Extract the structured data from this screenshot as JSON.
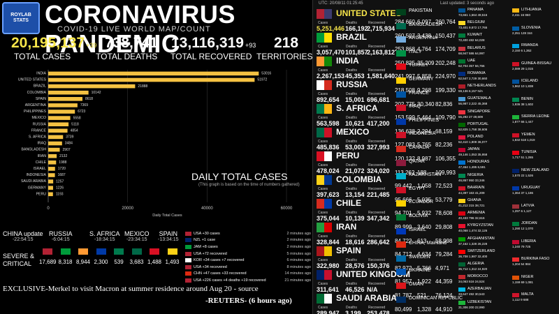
{
  "header": {
    "logo_line1": "ROYLAB",
    "logo_line2": "STATS",
    "title": "CORONAVIRUS PANDEMIC",
    "subtitle": "COVID-19 LIVE WORLD MAP/COUNT"
  },
  "totals": {
    "cases": "20,195,137",
    "cases_delta": "+39",
    "cases_label": "TOTAL CASES",
    "deaths": "738,741",
    "deaths_label": "TOTAL DEATHS",
    "recovered": "13,116,319",
    "recovered_delta": "+93",
    "recovered_label": "TOTAL RECOVERED",
    "territories": "218",
    "territories_label": "TERRITORIES"
  },
  "chart_title": "DAILY TOTAL CASES",
  "chart_note": "(This graph is based on the time of numbers gathered)",
  "chart_data": {
    "type": "bar",
    "orientation": "horizontal",
    "title": "DAILY TOTAL CASES",
    "xlabel": "Daily Total Cases",
    "ylabel": "",
    "xlim": [
      0,
      60000
    ],
    "xticks": [
      "0",
      "20000",
      "40000",
      "60000"
    ],
    "categories": [
      "INDIA",
      "UNITED STATES",
      "BRAZIL",
      "COLOMBIA",
      "SPAIN",
      "ARGENTINA",
      "PHILIPPINES",
      "MEXICO",
      "RUSSIA",
      "FRANCE",
      "S. AFRICA",
      "IRAQ",
      "BANGLADESH",
      "IRAN",
      "CHILE",
      "ISRAEL",
      "INDONESIA",
      "SAUDI ARABIA",
      "GERMANY",
      "PERU"
    ],
    "values": [
      53016,
      51972,
      21888,
      10142,
      8618,
      7369,
      6723,
      5558,
      5118,
      4854,
      3739,
      3484,
      2907,
      2132,
      1988,
      1720,
      1687,
      1257,
      1226,
      1193
    ],
    "grid": true
  },
  "china_bar": [
    {
      "name": "CHINA update",
      "time": "-22:54:15"
    },
    {
      "name": "RUSSIA",
      "time": "-6:04:15"
    },
    {
      "name": "S. AFRICA",
      "time": "-18:34:15"
    },
    {
      "name": "MEXICO",
      "time": "-23:34:15"
    },
    {
      "name": "SPAIN",
      "time": "-13:34:15"
    }
  ],
  "severe": {
    "line1": "SEVERE &",
    "line2": "CRITICAL"
  },
  "severe_flags": [
    {
      "value": "17,689",
      "color": "#b22234"
    },
    {
      "value": "8,318",
      "color": "#009c3b"
    },
    {
      "value": "8,944",
      "color": "#ff9933"
    },
    {
      "value": "2,300",
      "color": "#0039a6"
    },
    {
      "value": "539",
      "color": "#007a4d"
    },
    {
      "value": "3,683",
      "color": "#006847"
    },
    {
      "value": "1,488",
      "color": "#d91023"
    },
    {
      "value": "1,493",
      "color": "#fcd116"
    }
  ],
  "notifications": [
    {
      "text": "USA +30 cases",
      "time": "2 minutes ago",
      "color": "#b22234"
    },
    {
      "text": "NZL +1 case",
      "time": "2 minutes ago",
      "color": "#012169"
    },
    {
      "text": "JAM +8 cases",
      "time": "2 minutes ago",
      "color": "#009b3a"
    },
    {
      "text": "USA +72 recovered",
      "time": "5 minutes ago",
      "color": "#b22234"
    },
    {
      "text": "KOR +34 cases +7 recovered",
      "time": "6 minutes ago",
      "color": "#ffffff"
    },
    {
      "text": "USA +34 recovered",
      "time": "8 minutes ago",
      "color": "#b22234"
    },
    {
      "text": "CHN +47 cases +33 recovered",
      "time": "14 minutes ago",
      "color": "#de2910"
    },
    {
      "text": "USA +226 cases +4 deaths +19 recovered",
      "time": "21 minutes ago",
      "color": "#b22234"
    }
  ],
  "news": {
    "text": "EXCLUSIVE-Merkel to visit Macron at summer residence around Aug 20 - source",
    "source": "-REUTERS- (6 hours ago)"
  },
  "right_header": {
    "utc": "UTC: 20/08/11 01:25:45",
    "updated": "Last updated: 3 seconds ago"
  },
  "col_labels": {
    "cases": "Cases",
    "deaths": "Deaths",
    "recovered": "Recovered"
  },
  "big_countries": [
    {
      "name": "UNITED STATES",
      "cases": "5,251,446",
      "deaths": "166,192",
      "recovered": "2,715,934",
      "c1": "#b22234",
      "c2": "#3c3b6e",
      "highlight": true
    },
    {
      "name": "BRAZIL",
      "cases": "3,057,470",
      "deaths": "101,857",
      "recovered": "2,163,812",
      "c1": "#009c3b",
      "c2": "#ffdf00"
    },
    {
      "name": "INDIA",
      "cases": "2,267,153",
      "deaths": "45,353",
      "recovered": "1,581,640",
      "c1": "#ff9933",
      "c2": "#138808"
    },
    {
      "name": "RUSSIA",
      "cases": "892,654",
      "deaths": "15,001",
      "recovered": "696,681",
      "c1": "#ffffff",
      "c2": "#d52b1e"
    },
    {
      "name": "S. AFRICA",
      "cases": "563,598",
      "deaths": "10,621",
      "recovered": "417,200",
      "c1": "#007a4d",
      "c2": "#ffb612"
    },
    {
      "name": "MEXICO",
      "cases": "485,836",
      "deaths": "53,003",
      "recovered": "327,993",
      "c1": "#006847",
      "c2": "#ce1126"
    },
    {
      "name": "PERU",
      "cases": "478,024",
      "deaths": "21,072",
      "recovered": "324,020",
      "c1": "#d91023",
      "c2": "#ffffff"
    },
    {
      "name": "COLOMBIA",
      "cases": "397,623",
      "deaths": "13,154",
      "recovered": "221,485",
      "c1": "#fcd116",
      "c2": "#003893"
    },
    {
      "name": "CHILE",
      "cases": "375,044",
      "deaths": "10,139",
      "recovered": "347,342",
      "c1": "#d52b1e",
      "c2": "#0039a6"
    },
    {
      "name": "IRAN",
      "cases": "328,844",
      "deaths": "18,616",
      "recovered": "286,642",
      "c1": "#239f40",
      "c2": "#da0000"
    },
    {
      "name": "SPAIN",
      "cases": "322,980",
      "deaths": "28,576",
      "recovered": "150,376",
      "c1": "#aa151b",
      "c2": "#f1bf00"
    },
    {
      "name": "UNITED KINGDOM",
      "cases": "311,641",
      "deaths": "46,526",
      "recovered": "N/A",
      "c1": "#012169",
      "c2": "#c8102e"
    },
    {
      "name": "SAUDI ARABIA",
      "cases": "289,947",
      "deaths": "3,199",
      "recovered": "253,478",
      "c1": "#006c35",
      "c2": "#ffffff"
    }
  ],
  "mid_countries": [
    {
      "name": "PAKISTAN",
      "cases": "284,660",
      "deaths": "6,097",
      "recovered": "260,764",
      "c1": "#01411c"
    },
    {
      "name": "BANGLADESH",
      "cases": "260,507",
      "deaths": "3,438",
      "recovered": "150,437",
      "c1": "#006a4e"
    },
    {
      "name": "ARGENTINA",
      "cases": "253,868",
      "deaths": "4,764",
      "recovered": "174,709",
      "c1": "#74acdf"
    },
    {
      "name": "ITALY",
      "cases": "250,825",
      "deaths": "35,209",
      "recovered": "202,248",
      "c1": "#009246"
    },
    {
      "name": "TURKEY",
      "cases": "241,997",
      "deaths": "5,858",
      "recovered": "224,970",
      "c1": "#e30a17"
    },
    {
      "name": "GERMANY",
      "cases": "218,508",
      "deaths": "9,268",
      "recovered": "199,330",
      "c1": "#ffce00"
    },
    {
      "name": "FRANCE",
      "cases": "202,775",
      "deaths": "30,340",
      "recovered": "82,836",
      "c1": "#0055a4"
    },
    {
      "name": "IRAQ",
      "cases": "153,599",
      "deaths": "5,464",
      "recovered": "109,790",
      "c1": "#ce1126"
    },
    {
      "name": "PHILIPPINES",
      "cases": "136,638",
      "deaths": "2,294",
      "recovered": "68,159",
      "c1": "#0038a8"
    },
    {
      "name": "INDONESIA",
      "cases": "127,083",
      "deaths": "5,765",
      "recovered": "82,236",
      "c1": "#ce1126"
    },
    {
      "name": "CANADA",
      "cases": "120,132",
      "deaths": "8,987",
      "recovered": "106,355",
      "c1": "#d52b1e"
    },
    {
      "name": "QATAR",
      "cases": "113,262",
      "deaths": "188",
      "recovered": "109,993",
      "c1": "#8d1b3d"
    },
    {
      "name": "KAZAKHSTAN",
      "cases": "99,442",
      "deaths": "1,058",
      "recovered": "72,523",
      "c1": "#00afca"
    },
    {
      "name": "EGYPT",
      "cases": "95,666",
      "deaths": "5,035",
      "recovered": "53,779",
      "c1": "#ce1126"
    },
    {
      "name": "ECUADOR",
      "cases": "94,701",
      "deaths": "5,932",
      "recovered": "78,608",
      "c1": "#ffd100"
    },
    {
      "name": "BOLIVIA",
      "cases": "89,999",
      "deaths": "3,640",
      "recovered": "29,808",
      "c1": "#007934"
    },
    {
      "name": "ISRAEL",
      "cases": "84,722",
      "deaths": "613",
      "recovered": "58,998",
      "c1": "#0038b8"
    },
    {
      "name": "CHINA, Mainland",
      "cases": "84,712",
      "deaths": "4,634",
      "recovered": "79,284",
      "c1": "#de2910"
    },
    {
      "name": "SWEDEN",
      "cases": "82,972",
      "deaths": "5,766",
      "recovered": "4,971",
      "c1": "#006aa7"
    },
    {
      "name": "UKRAINE",
      "cases": "81,957",
      "deaths": "1,922",
      "recovered": "44,359",
      "c1": "#0057b7"
    },
    {
      "name": "OMAN",
      "cases": "81,787",
      "deaths": "521",
      "recovered": "76,124",
      "c1": "#db161b"
    },
    {
      "name": "DOMINICAN REPUBLIC",
      "cases": "80,499",
      "deaths": "1,328",
      "recovered": "44,910",
      "c1": "#002d62"
    }
  ],
  "small_countries": [
    {
      "name": "PANAMA",
      "nums": "73,651  1,664  49,516",
      "c1": "#005293"
    },
    {
      "name": "BELGIUM",
      "nums": "73,401  9,872  17,765",
      "c1": "#fdda24"
    },
    {
      "name": "KUWAIT",
      "nums": "72,400  482  64,028",
      "c1": "#007a3d"
    },
    {
      "name": "BELARUS",
      "nums": "68,947  586  64,997",
      "c1": "#c8313e"
    },
    {
      "name": "UAE",
      "nums": "62,704  357  56,766",
      "c1": "#00732f"
    },
    {
      "name": "ROMANIA",
      "nums": "62,547  2,729  30,660",
      "c1": "#002b7f"
    },
    {
      "name": "NETHERLANDS",
      "nums": "59,136  6,157  N/A",
      "c1": "#ae1c28"
    },
    {
      "name": "GUATEMALA",
      "nums": "56,987  2,222  45,368",
      "c1": "#4997d0"
    },
    {
      "name": "SINGAPORE",
      "nums": "55,292  27  49,609",
      "c1": "#ef3340"
    },
    {
      "name": "PORTUGAL",
      "nums": "52,825  1,758  38,606",
      "c1": "#006600"
    },
    {
      "name": "POLAND",
      "nums": "52,410  1,809  36,077",
      "c1": "#dc143c"
    },
    {
      "name": "JAPAN",
      "nums": "49,146  1,053  35,958",
      "c1": "#bc002d"
    },
    {
      "name": "HONDURAS",
      "nums": "47,454  1,495  6,591",
      "c1": "#0073cf"
    },
    {
      "name": "NIGERIA",
      "nums": "46,867  950  33,346",
      "c1": "#008751"
    },
    {
      "name": "BAHRAIN",
      "nums": "44,397  163  41,209",
      "c1": "#ce1126"
    },
    {
      "name": "GHANA",
      "nums": "41,212  215  38,721",
      "c1": "#fcd116"
    },
    {
      "name": "ARMENIA",
      "nums": "40,433  796  32,616",
      "c1": "#d90012"
    },
    {
      "name": "KYRGYZSTAN",
      "nums": "40,068  1,474  32,126",
      "c1": "#e8112d"
    },
    {
      "name": "AFGHANISTAN",
      "nums": "37,162  1,328  26,228",
      "c1": "#009900"
    },
    {
      "name": "SWITZERLAND",
      "nums": "36,708  1,987  32,400",
      "c1": "#ff0000"
    },
    {
      "name": "ALGERIA",
      "nums": "35,712  1,312  24,920",
      "c1": "#006233"
    },
    {
      "name": "MOROCCO",
      "nums": "34,063  516  24,524",
      "c1": "#c1272d"
    },
    {
      "name": "AZERBAIJAN",
      "nums": "33,647  492  30,543",
      "c1": "#00b5e2"
    },
    {
      "name": "UZBEKISTAN",
      "nums": "31,306  200  22,990",
      "c1": "#1eb53a"
    }
  ],
  "tiny_countries": [
    {
      "name": "LITHUANIA",
      "nums": "2,411  16  860",
      "c1": "#fdb913"
    },
    {
      "name": "SLOVENIA",
      "nums": "2,251  128  344",
      "c1": "#005da4"
    },
    {
      "name": "RWANDA",
      "nums": "2,150  6  1,362",
      "c1": "#00a1de"
    },
    {
      "name": "GUINEA-BISSAU",
      "nums": "2,089  29  1,015",
      "c1": "#ce1126"
    },
    {
      "name": "ICELAND",
      "nums": "1,962  10  1,838",
      "c1": "#02529c"
    },
    {
      "name": "BENIN",
      "nums": "1,936  38  1,602",
      "c1": "#008751"
    },
    {
      "name": "SIERRA LEONE",
      "nums": "1,877  66  1,447",
      "c1": "#1eb53a"
    },
    {
      "name": "YEMEN",
      "nums": "1,832  518  1,019",
      "c1": "#ce1126"
    },
    {
      "name": "TUNISIA",
      "nums": "1,717  51  1,265",
      "c1": "#e70013"
    },
    {
      "name": "NEW ZEALAND",
      "nums": "1,570  22  1,526",
      "c1": "#012169"
    },
    {
      "name": "URUGUAY",
      "nums": "1,364  37  1,186",
      "c1": "#0038a8"
    },
    {
      "name": "LATVIA",
      "nums": "1,297  6  1,127",
      "c1": "#9e3039"
    },
    {
      "name": "JORDAN",
      "nums": "1,290  12  1,070",
      "c1": "#007a3d"
    },
    {
      "name": "LIBERIA",
      "nums": "1,240  79  725",
      "c1": "#bf0a30"
    },
    {
      "name": "BURKINA FASO",
      "nums": "1,204  54  984",
      "c1": "#ef2b2d"
    },
    {
      "name": "NIGER",
      "nums": "1,159  69  1,081",
      "c1": "#e05206"
    },
    {
      "name": "MALTA",
      "nums": "1,112  9  688",
      "c1": "#cf142b"
    }
  ]
}
